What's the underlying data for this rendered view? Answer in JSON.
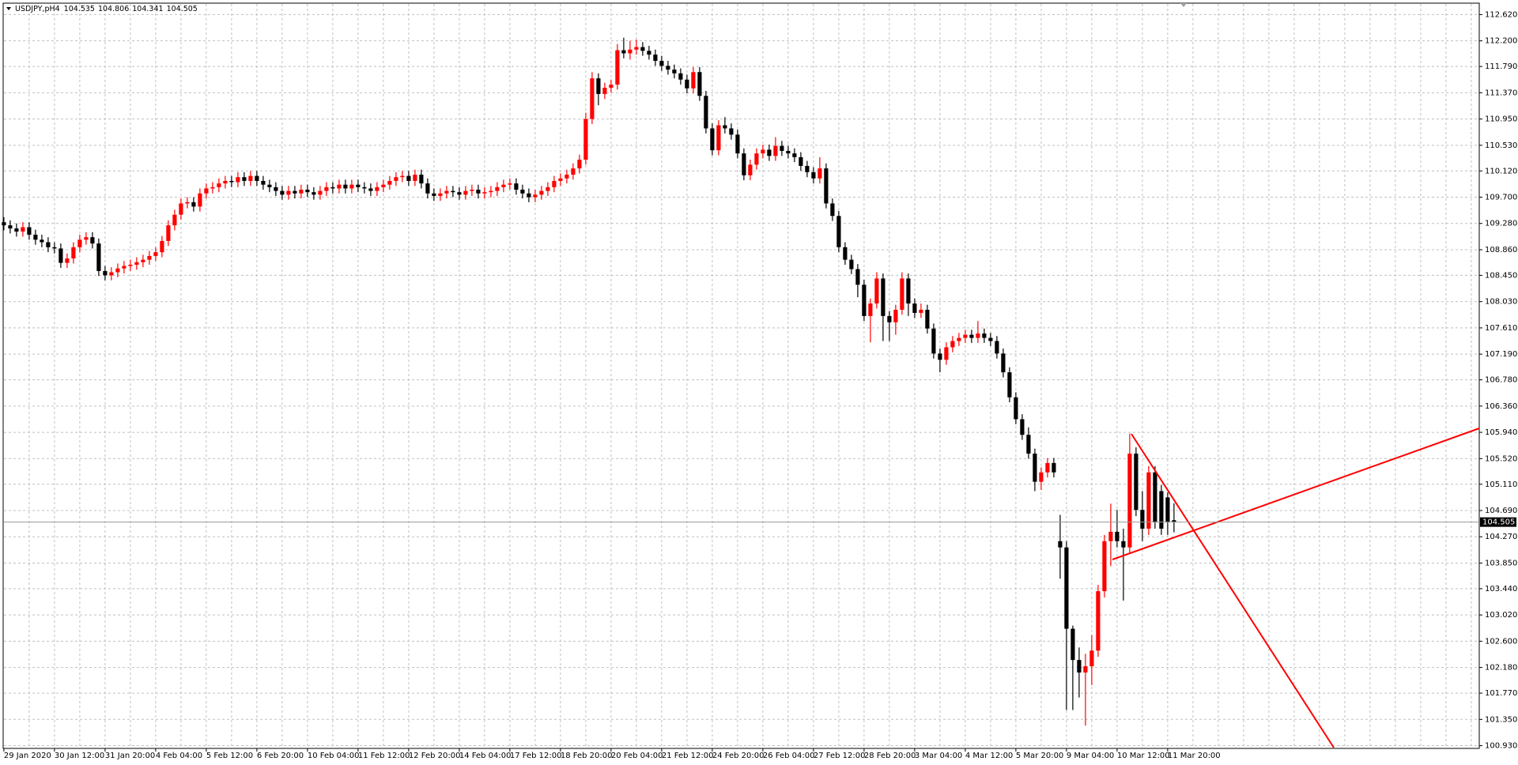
{
  "chart_data": {
    "type": "candlestick",
    "symbol": "USDJPY,pH4",
    "categories": [
      "29 Jan 2020",
      null,
      null,
      null,
      null,
      null,
      null,
      null,
      "30 Jan 12:00",
      null,
      null,
      null,
      null,
      null,
      null,
      null,
      "31 Jan 20:00",
      null,
      null,
      null,
      null,
      null,
      null,
      null,
      "4 Feb 04:00",
      null,
      null,
      null,
      null,
      null,
      null,
      null,
      "5 Feb 12:00",
      null,
      null,
      null,
      null,
      null,
      null,
      null,
      "6 Feb 20:00",
      null,
      null,
      null,
      null,
      null,
      null,
      null,
      "10 Feb 04:00",
      null,
      null,
      null,
      null,
      null,
      null,
      null,
      "11 Feb 12:00",
      null,
      null,
      null,
      null,
      null,
      null,
      null,
      "12 Feb 20:00",
      null,
      null,
      null,
      null,
      null,
      null,
      null,
      "14 Feb 04:00",
      null,
      null,
      null,
      null,
      null,
      null,
      null,
      "17 Feb 12:00",
      null,
      null,
      null,
      null,
      null,
      null,
      null,
      "18 Feb 20:00",
      null,
      null,
      null,
      null,
      null,
      null,
      null,
      "20 Feb 04:00",
      null,
      null,
      null,
      null,
      null,
      null,
      null,
      "21 Feb 12:00",
      null,
      null,
      null,
      null,
      null,
      null,
      null,
      "24 Feb 20:00",
      null,
      null,
      null,
      null,
      null,
      null,
      null,
      "26 Feb 04:00",
      null,
      null,
      null,
      null,
      null,
      null,
      null,
      "27 Feb 12:00",
      null,
      null,
      null,
      null,
      null,
      null,
      null,
      "28 Feb 20:00",
      null,
      null,
      null,
      null,
      null,
      null,
      null,
      "3 Mar 04:00",
      null,
      null,
      null,
      null,
      null,
      null,
      null,
      "4 Mar 12:00",
      null,
      null,
      null,
      null,
      null,
      null,
      null,
      "5 Mar 20:00",
      null,
      null,
      null,
      null,
      null,
      null,
      null,
      "9 Mar 04:00",
      null,
      null,
      null,
      null,
      null,
      null,
      null,
      "10 Mar 12:00",
      null,
      null,
      null,
      null,
      null,
      null,
      null,
      "11 Mar 20:00",
      null
    ],
    "ohlc": [
      [
        109.3,
        109.38,
        109.17,
        109.25
      ],
      [
        109.25,
        109.33,
        109.12,
        109.2
      ],
      [
        109.2,
        109.28,
        109.07,
        109.15
      ],
      [
        109.15,
        109.3,
        109.07,
        109.22
      ],
      [
        109.22,
        109.3,
        109.02,
        109.1
      ],
      [
        109.1,
        109.18,
        108.94,
        109.02
      ],
      [
        109.02,
        109.1,
        108.9,
        108.98
      ],
      [
        108.98,
        109.06,
        108.82,
        108.9
      ],
      [
        108.9,
        108.98,
        108.8,
        108.88
      ],
      [
        108.88,
        108.96,
        108.57,
        108.65
      ],
      [
        108.65,
        108.8,
        108.57,
        108.72
      ],
      [
        108.72,
        108.98,
        108.64,
        108.9
      ],
      [
        108.9,
        109.1,
        108.82,
        109.02
      ],
      [
        109.02,
        109.14,
        108.94,
        109.06
      ],
      [
        109.06,
        109.14,
        108.88,
        108.96
      ],
      [
        108.96,
        109.04,
        108.44,
        108.52
      ],
      [
        108.52,
        108.6,
        108.37,
        108.45
      ],
      [
        108.45,
        108.58,
        108.37,
        108.5
      ],
      [
        108.5,
        108.64,
        108.42,
        108.56
      ],
      [
        108.56,
        108.68,
        108.48,
        108.6
      ],
      [
        108.6,
        108.7,
        108.52,
        108.62
      ],
      [
        108.62,
        108.74,
        108.54,
        108.66
      ],
      [
        108.66,
        108.78,
        108.58,
        108.7
      ],
      [
        108.7,
        108.84,
        108.62,
        108.76
      ],
      [
        108.76,
        108.9,
        108.68,
        108.82
      ],
      [
        108.82,
        109.08,
        108.74,
        109.0
      ],
      [
        109.0,
        109.33,
        108.92,
        109.25
      ],
      [
        109.25,
        109.5,
        109.17,
        109.42
      ],
      [
        109.42,
        109.68,
        109.34,
        109.6
      ],
      [
        109.6,
        109.7,
        109.52,
        109.62
      ],
      [
        109.62,
        109.7,
        109.47,
        109.55
      ],
      [
        109.55,
        109.84,
        109.47,
        109.76
      ],
      [
        109.76,
        109.92,
        109.68,
        109.84
      ],
      [
        109.84,
        109.94,
        109.76,
        109.86
      ],
      [
        109.86,
        110.0,
        109.78,
        109.92
      ],
      [
        109.92,
        110.04,
        109.84,
        109.96
      ],
      [
        109.96,
        110.04,
        109.86,
        109.94
      ],
      [
        109.94,
        110.1,
        109.86,
        110.02
      ],
      [
        110.02,
        110.1,
        109.88,
        109.96
      ],
      [
        109.96,
        110.12,
        109.88,
        110.04
      ],
      [
        110.04,
        110.12,
        109.88,
        109.96
      ],
      [
        109.96,
        110.04,
        109.82,
        109.9
      ],
      [
        109.9,
        109.98,
        109.78,
        109.86
      ],
      [
        109.86,
        109.94,
        109.72,
        109.8
      ],
      [
        109.8,
        109.88,
        109.66,
        109.74
      ],
      [
        109.74,
        109.88,
        109.66,
        109.8
      ],
      [
        109.8,
        109.88,
        109.68,
        109.76
      ],
      [
        109.76,
        109.9,
        109.68,
        109.82
      ],
      [
        109.82,
        109.9,
        109.7,
        109.78
      ],
      [
        109.78,
        109.86,
        109.66,
        109.74
      ],
      [
        109.74,
        109.88,
        109.66,
        109.8
      ],
      [
        109.8,
        109.94,
        109.72,
        109.86
      ],
      [
        109.86,
        109.94,
        109.76,
        109.84
      ],
      [
        109.84,
        109.98,
        109.76,
        109.9
      ],
      [
        109.9,
        109.98,
        109.76,
        109.84
      ],
      [
        109.84,
        109.98,
        109.76,
        109.9
      ],
      [
        109.9,
        109.98,
        109.78,
        109.86
      ],
      [
        109.86,
        109.94,
        109.76,
        109.84
      ],
      [
        109.84,
        109.92,
        109.72,
        109.8
      ],
      [
        109.8,
        109.94,
        109.72,
        109.86
      ],
      [
        109.86,
        109.98,
        109.78,
        109.9
      ],
      [
        109.9,
        110.04,
        109.82,
        109.96
      ],
      [
        109.96,
        110.1,
        109.88,
        110.02
      ],
      [
        110.02,
        110.12,
        109.94,
        110.04
      ],
      [
        110.04,
        110.12,
        109.88,
        109.96
      ],
      [
        109.96,
        110.14,
        109.88,
        110.06
      ],
      [
        110.06,
        110.14,
        109.84,
        109.92
      ],
      [
        109.92,
        110.0,
        109.68,
        109.76
      ],
      [
        109.76,
        109.84,
        109.64,
        109.72
      ],
      [
        109.72,
        109.84,
        109.64,
        109.76
      ],
      [
        109.76,
        109.88,
        109.68,
        109.8
      ],
      [
        109.8,
        109.88,
        109.7,
        109.78
      ],
      [
        109.78,
        109.86,
        109.66,
        109.74
      ],
      [
        109.74,
        109.88,
        109.66,
        109.8
      ],
      [
        109.8,
        109.9,
        109.72,
        109.82
      ],
      [
        109.82,
        109.9,
        109.68,
        109.76
      ],
      [
        109.76,
        109.86,
        109.68,
        109.78
      ],
      [
        109.78,
        109.88,
        109.7,
        109.8
      ],
      [
        109.8,
        109.94,
        109.72,
        109.86
      ],
      [
        109.86,
        109.98,
        109.78,
        109.9
      ],
      [
        109.9,
        110.0,
        109.82,
        109.92
      ],
      [
        109.92,
        110.0,
        109.74,
        109.82
      ],
      [
        109.82,
        109.9,
        109.68,
        109.76
      ],
      [
        109.76,
        109.84,
        109.62,
        109.7
      ],
      [
        109.7,
        109.82,
        109.62,
        109.74
      ],
      [
        109.74,
        109.88,
        109.66,
        109.8
      ],
      [
        109.8,
        109.94,
        109.72,
        109.86
      ],
      [
        109.86,
        110.04,
        109.78,
        109.96
      ],
      [
        109.96,
        110.08,
        109.88,
        110.0
      ],
      [
        110.0,
        110.14,
        109.92,
        110.06
      ],
      [
        110.06,
        110.24,
        109.98,
        110.16
      ],
      [
        110.16,
        110.38,
        110.08,
        110.3
      ],
      [
        110.3,
        111.05,
        110.22,
        110.95
      ],
      [
        110.95,
        111.7,
        110.87,
        111.6
      ],
      [
        111.6,
        111.68,
        111.17,
        111.35
      ],
      [
        111.35,
        111.53,
        111.27,
        111.45
      ],
      [
        111.45,
        111.58,
        111.37,
        111.5
      ],
      [
        111.5,
        112.15,
        111.42,
        112.05
      ],
      [
        112.05,
        112.25,
        111.92,
        112.0
      ],
      [
        112.0,
        112.2,
        111.9,
        112.06
      ],
      [
        112.06,
        112.22,
        111.98,
        112.1
      ],
      [
        112.1,
        112.18,
        111.96,
        112.04
      ],
      [
        112.04,
        112.12,
        111.9,
        111.98
      ],
      [
        111.98,
        112.06,
        111.8,
        111.88
      ],
      [
        111.88,
        111.96,
        111.72,
        111.8
      ],
      [
        111.8,
        111.88,
        111.66,
        111.74
      ],
      [
        111.74,
        111.82,
        111.6,
        111.68
      ],
      [
        111.68,
        111.76,
        111.5,
        111.58
      ],
      [
        111.58,
        111.66,
        111.36,
        111.44
      ],
      [
        111.44,
        111.78,
        111.36,
        111.7
      ],
      [
        111.7,
        111.78,
        111.24,
        111.32
      ],
      [
        111.32,
        111.4,
        110.72,
        110.8
      ],
      [
        110.8,
        110.88,
        110.37,
        110.45
      ],
      [
        110.45,
        110.93,
        110.37,
        110.85
      ],
      [
        110.85,
        110.98,
        110.72,
        110.8
      ],
      [
        110.8,
        110.88,
        110.62,
        110.7
      ],
      [
        110.7,
        110.78,
        110.32,
        110.4
      ],
      [
        110.4,
        110.48,
        109.97,
        110.05
      ],
      [
        110.05,
        110.3,
        109.97,
        110.22
      ],
      [
        110.22,
        110.48,
        110.14,
        110.4
      ],
      [
        110.4,
        110.54,
        110.32,
        110.46
      ],
      [
        110.46,
        110.54,
        110.28,
        110.36
      ],
      [
        110.36,
        110.66,
        110.28,
        110.52
      ],
      [
        110.52,
        110.6,
        110.36,
        110.44
      ],
      [
        110.44,
        110.52,
        110.32,
        110.4
      ],
      [
        110.4,
        110.48,
        110.26,
        110.34
      ],
      [
        110.34,
        110.42,
        110.12,
        110.2
      ],
      [
        110.2,
        110.28,
        110.02,
        110.1
      ],
      [
        110.1,
        110.18,
        109.92,
        110.0
      ],
      [
        110.0,
        110.34,
        109.92,
        110.16
      ],
      [
        110.16,
        110.24,
        109.52,
        109.6
      ],
      [
        109.6,
        109.68,
        109.32,
        109.4
      ],
      [
        109.4,
        109.48,
        108.82,
        108.9
      ],
      [
        108.9,
        108.98,
        108.62,
        108.7
      ],
      [
        108.7,
        108.78,
        108.47,
        108.55
      ],
      [
        108.55,
        108.63,
        108.1,
        108.3
      ],
      [
        108.3,
        108.38,
        107.72,
        107.8
      ],
      [
        107.8,
        108.08,
        107.38,
        108.0
      ],
      [
        108.0,
        108.5,
        107.92,
        108.4
      ],
      [
        108.4,
        108.48,
        107.4,
        107.8
      ],
      [
        107.8,
        107.88,
        107.4,
        107.7
      ],
      [
        107.7,
        107.98,
        107.5,
        107.9
      ],
      [
        107.9,
        108.5,
        107.82,
        108.4
      ],
      [
        108.4,
        108.48,
        107.8,
        108.0
      ],
      [
        108.0,
        108.08,
        107.77,
        107.85
      ],
      [
        107.85,
        108.0,
        107.77,
        107.9
      ],
      [
        107.9,
        107.98,
        107.52,
        107.6
      ],
      [
        107.6,
        107.68,
        107.12,
        107.2
      ],
      [
        107.2,
        107.28,
        106.9,
        107.1
      ],
      [
        107.1,
        107.38,
        107.02,
        107.3
      ],
      [
        107.3,
        107.48,
        107.22,
        107.4
      ],
      [
        107.4,
        107.53,
        107.32,
        107.45
      ],
      [
        107.45,
        107.58,
        107.37,
        107.5
      ],
      [
        107.5,
        107.58,
        107.37,
        107.45
      ],
      [
        107.45,
        107.72,
        107.37,
        107.52
      ],
      [
        107.52,
        107.6,
        107.37,
        107.45
      ],
      [
        107.45,
        107.53,
        107.32,
        107.4
      ],
      [
        107.4,
        107.48,
        107.12,
        107.2
      ],
      [
        107.2,
        107.28,
        106.82,
        106.9
      ],
      [
        106.9,
        106.98,
        106.42,
        106.5
      ],
      [
        106.5,
        106.58,
        106.07,
        106.15
      ],
      [
        106.15,
        106.23,
        105.82,
        105.9
      ],
      [
        105.9,
        106.02,
        105.52,
        105.6
      ],
      [
        105.6,
        105.68,
        105.0,
        105.15
      ],
      [
        105.15,
        105.38,
        105.02,
        105.3
      ],
      [
        105.3,
        105.53,
        105.22,
        105.45
      ],
      [
        105.45,
        105.53,
        105.22,
        105.3
      ],
      [
        104.2,
        104.62,
        103.6,
        104.1
      ],
      [
        104.1,
        104.2,
        101.5,
        102.8
      ],
      [
        102.8,
        102.85,
        101.5,
        102.3
      ],
      [
        102.3,
        102.5,
        101.7,
        102.1
      ],
      [
        102.1,
        102.4,
        101.25,
        102.2
      ],
      [
        102.2,
        102.7,
        101.9,
        102.45
      ],
      [
        102.45,
        103.5,
        102.35,
        103.4
      ],
      [
        103.4,
        104.3,
        103.3,
        104.2
      ],
      [
        104.2,
        104.8,
        103.8,
        104.35
      ],
      [
        104.35,
        104.7,
        104.1,
        104.2
      ],
      [
        104.2,
        104.4,
        103.25,
        104.1
      ],
      [
        104.1,
        105.92,
        104.0,
        105.6
      ],
      [
        105.6,
        105.7,
        104.6,
        104.7
      ],
      [
        104.7,
        105.0,
        104.2,
        104.4
      ],
      [
        104.4,
        105.4,
        104.3,
        105.3
      ],
      [
        105.3,
        105.4,
        104.4,
        104.5
      ],
      [
        105.0,
        105.1,
        104.3,
        104.4
      ],
      [
        104.9,
        104.98,
        104.3,
        104.5
      ],
      [
        104.535,
        104.806,
        104.341,
        104.505
      ]
    ],
    "ylim": [
      100.88,
      112.7
    ],
    "yticks": [
      {
        "value": 112.62,
        "label": "112.620"
      },
      {
        "value": 112.2,
        "label": "112.200"
      },
      {
        "value": 111.79,
        "label": "111.790"
      },
      {
        "value": 111.37,
        "label": "111.370"
      },
      {
        "value": 110.95,
        "label": "110.950"
      },
      {
        "value": 110.53,
        "label": "110.530"
      },
      {
        "value": 110.12,
        "label": "110.120"
      },
      {
        "value": 109.7,
        "label": "109.700"
      },
      {
        "value": 109.28,
        "label": "109.280"
      },
      {
        "value": 108.86,
        "label": "108.860"
      },
      {
        "value": 108.45,
        "label": "108.450"
      },
      {
        "value": 108.03,
        "label": "108.030"
      },
      {
        "value": 107.61,
        "label": "107.610"
      },
      {
        "value": 107.19,
        "label": "107.190"
      },
      {
        "value": 106.78,
        "label": "106.780"
      },
      {
        "value": 106.36,
        "label": "106.360"
      },
      {
        "value": 105.94,
        "label": "105.940"
      },
      {
        "value": 105.52,
        "label": "105.520"
      },
      {
        "value": 105.11,
        "label": "105.110"
      },
      {
        "value": 104.69,
        "label": "104.690"
      },
      {
        "value": 104.27,
        "label": "104.270"
      },
      {
        "value": 103.85,
        "label": "103.850"
      },
      {
        "value": 103.44,
        "label": "103.440"
      },
      {
        "value": 103.02,
        "label": "103.020"
      },
      {
        "value": 102.6,
        "label": "102.600"
      },
      {
        "value": 102.18,
        "label": "102.180"
      },
      {
        "value": 101.77,
        "label": "101.770"
      },
      {
        "value": 101.35,
        "label": "101.350"
      },
      {
        "value": 100.93,
        "label": "100.930"
      }
    ],
    "grid": true,
    "up_color": "#ff0000",
    "down_color": "#000000"
  }
}
